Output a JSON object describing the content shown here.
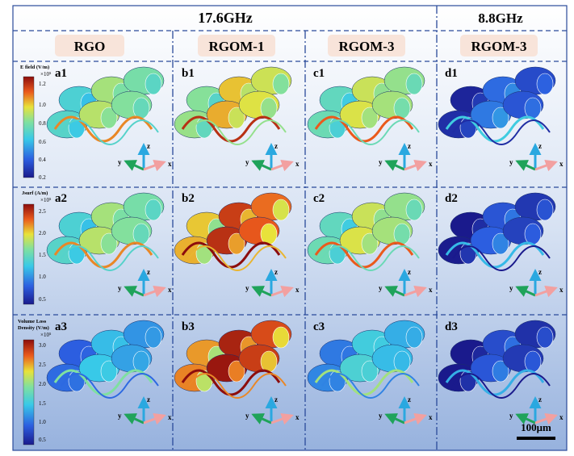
{
  "header": {
    "freq_left": "17.6GHz",
    "freq_right": "8.8GHz"
  },
  "columns": [
    {
      "label": "RGO"
    },
    {
      "label": "RGOM-1"
    },
    {
      "label": "RGOM-3"
    },
    {
      "label": "RGOM-3"
    }
  ],
  "rows": [
    {
      "panels": [
        "a1",
        "b1",
        "c1",
        "d1"
      ],
      "colorbar": {
        "title_lines": [
          "E field (V/m)"
        ],
        "exponent": "×10⁵",
        "ticks": [
          "1.2",
          "1.0",
          "0.8",
          "0.6",
          "0.4",
          "0.2"
        ]
      },
      "intensity": [
        0.55,
        0.68,
        0.6,
        0.15
      ]
    },
    {
      "panels": [
        "a2",
        "b2",
        "c2",
        "d2"
      ],
      "colorbar": {
        "title_lines": [
          "Jsurf (A/m)"
        ],
        "exponent": "×10⁵",
        "ticks": [
          "2.5",
          "2.0",
          "1.5",
          "1.0",
          "0.5"
        ]
      },
      "intensity": [
        0.55,
        0.85,
        0.6,
        0.1
      ]
    },
    {
      "panels": [
        "a3",
        "b3",
        "c3",
        "d3"
      ],
      "colorbar": {
        "title_lines": [
          "Volume Loss",
          "Density (V/m)"
        ],
        "exponent": "×10⁵",
        "ticks": [
          "3.0",
          "2.5",
          "2.0",
          "1.5",
          "1.0",
          "0.5"
        ]
      },
      "intensity": [
        0.3,
        0.9,
        0.35,
        0.08
      ]
    }
  ],
  "axes": {
    "x": "x",
    "y": "y",
    "z": "z"
  },
  "scale_bar": "100μm",
  "colors": {
    "frame": "#2a4a9a",
    "pill_bg": "#f8e4da",
    "bg_top": "#ffffff",
    "bg_bottom": "#97b2de"
  },
  "icons": [
    "triad-axes-icon"
  ]
}
